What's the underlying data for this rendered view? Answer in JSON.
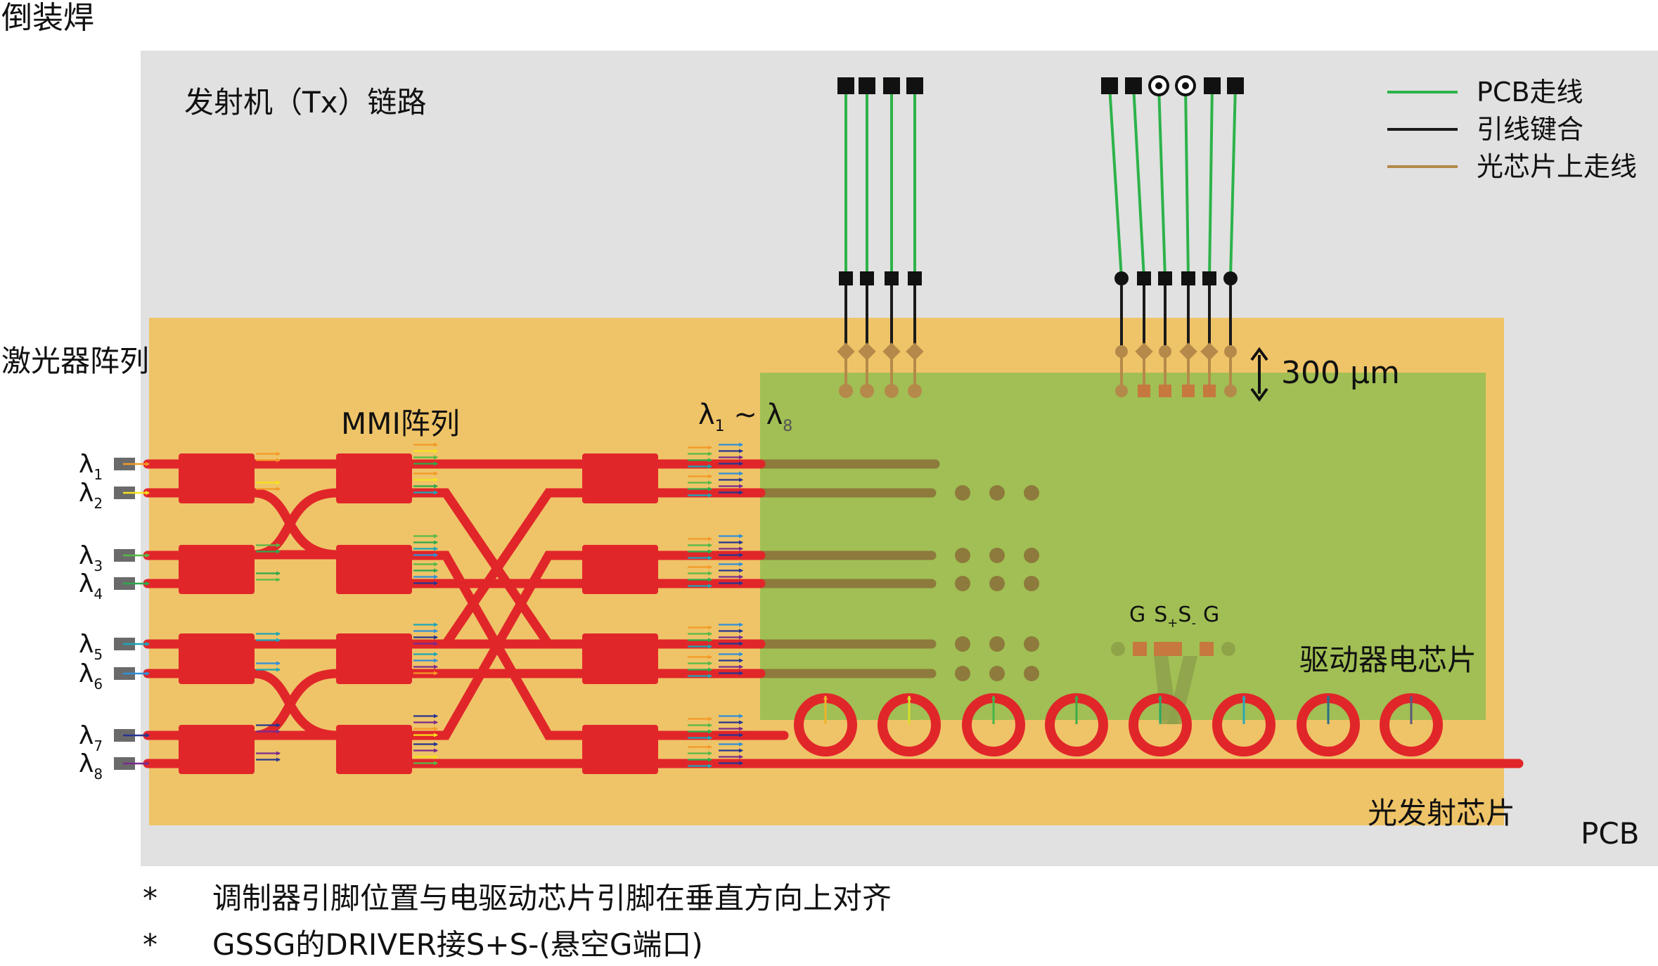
{
  "title": "倒装焊",
  "link_label": "发射机（Tx）链路",
  "laser_array_label": "激光器阵列",
  "mmi_label": "MMI阵列",
  "wavelength_range": {
    "lambda": "λ",
    "sub_start": "1",
    "tilde": " ~ ",
    "sub_end": "8"
  },
  "lasers": [
    {
      "symbol": "λ",
      "sub": "1"
    },
    {
      "symbol": "λ",
      "sub": "2"
    },
    {
      "symbol": "λ",
      "sub": "3"
    },
    {
      "symbol": "λ",
      "sub": "4"
    },
    {
      "symbol": "λ",
      "sub": "5"
    },
    {
      "symbol": "λ",
      "sub": "6"
    },
    {
      "symbol": "λ",
      "sub": "7"
    },
    {
      "symbol": "λ",
      "sub": "8"
    }
  ],
  "dimension_label": "300 μm",
  "gssg": {
    "g1": "G",
    "s": "S",
    "plus": "+",
    "s2": "S",
    "minus": "-",
    "g2": "G"
  },
  "driver_chip_label": "驱动器电芯片",
  "optical_tx_chip_label": "光发射芯片",
  "pcb_label": "PCB",
  "legend": [
    {
      "label": "PCB走线",
      "color": "#2db34a"
    },
    {
      "label": "引线键合",
      "color": "#1a1a1a"
    },
    {
      "label": "光芯片上走线",
      "color": "#b5894a"
    }
  ],
  "notes": [
    {
      "bullet": "*",
      "text": "调制器引脚位置与电驱动芯片引脚在垂直方向上对齐"
    },
    {
      "bullet": "*",
      "text": "GSSG的DRIVER接S+S-(悬空G端口)"
    }
  ],
  "colors": {
    "pcb": "#e0e1e0",
    "optical_chip": "#efc468",
    "driver_chip": "#a1bf54",
    "waveguide": "#e1262a",
    "pcb_trace": "#2db34a",
    "wire_bond": "#1a1a1a",
    "chip_trace": "#b5894a",
    "pad_on_driver": "#8d7a3c",
    "laser_stub": "#6a6a6a"
  },
  "wavelength_colors": [
    "#f39a27",
    "#f5e21b",
    "#57b947",
    "#2ca84b",
    "#1ba6b8",
    "#2f8fd8",
    "#27358f",
    "#7a2a8e"
  ]
}
